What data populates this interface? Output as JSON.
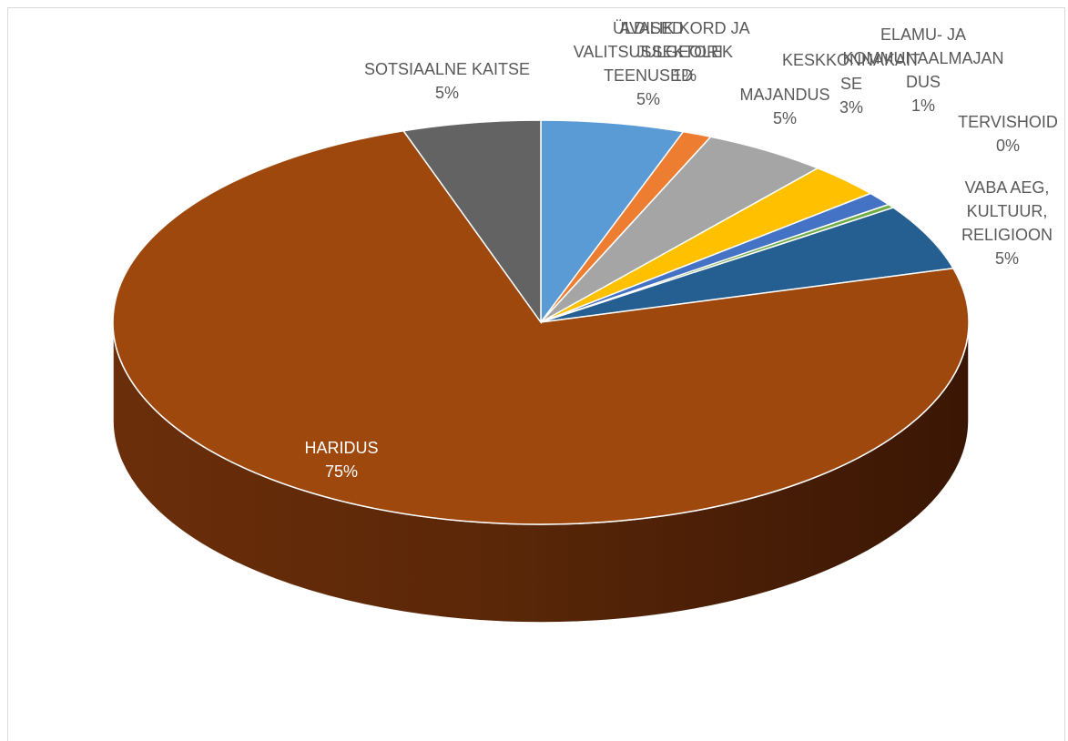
{
  "chart_data": {
    "type": "pie",
    "style": "3d",
    "title": "",
    "legend": "none",
    "slices": [
      {
        "name": "ÜLDISED VALITSUSSEKTORI TEENUSED",
        "value": 5,
        "label_lines": [
          "ÜLDISED",
          "VALITSUSSEKTORI",
          "TEENUSED"
        ],
        "color": "#5b9bd5"
      },
      {
        "name": "AVALIK KORD JA JULGEOLEK",
        "value": 1,
        "label_lines": [
          "AVALIK KORD JA",
          "JULGEOLEK"
        ],
        "color": "#ed7d31"
      },
      {
        "name": "MAJANDUS",
        "value": 5,
        "label_lines": [
          "MAJANDUS"
        ],
        "color": "#a5a5a5"
      },
      {
        "name": "KESKKONNAKAITSE",
        "value": 3,
        "label_lines": [
          "KESKKONNAKAIT",
          "SE"
        ],
        "color": "#ffc000"
      },
      {
        "name": "ELAMU- JA KOMMUNAALMAJANDUS",
        "value": 1,
        "label_lines": [
          "ELAMU- JA",
          "KOMMUNAALMAJAN",
          "DUS"
        ],
        "color": "#4472c4"
      },
      {
        "name": "TERVISHOID",
        "value": 0,
        "label_lines": [
          "TERVISHOID"
        ],
        "color": "#70ad47"
      },
      {
        "name": "VABA AEG, KULTUUR, RELIGIOON",
        "value": 5,
        "label_lines": [
          "VABA AEG,",
          "KULTUUR,",
          "RELIGIOON"
        ],
        "color": "#255e91"
      },
      {
        "name": "HARIDUS",
        "value": 75,
        "label_lines": [
          "HARIDUS"
        ],
        "color": "#9e480e"
      },
      {
        "name": "SOTSIAALNE KAITSE",
        "value": 5,
        "label_lines": [
          "SOTSIAALNE KAITSE"
        ],
        "color": "#636363"
      }
    ]
  }
}
